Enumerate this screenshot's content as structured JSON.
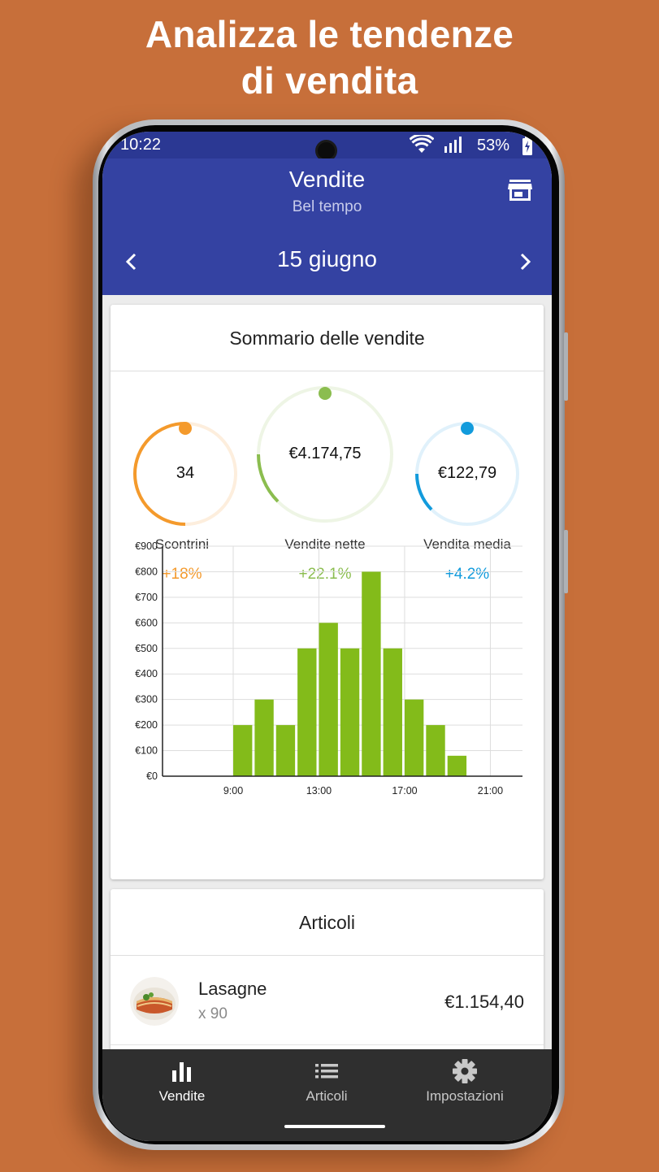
{
  "promo": {
    "headline_line1": "Analizza le tendenze",
    "headline_line2": "di vendita"
  },
  "status_bar": {
    "time": "10:22",
    "battery": "53%"
  },
  "app_bar": {
    "title": "Vendite",
    "subtitle": "Bel tempo",
    "date": "15 giugno"
  },
  "summary": {
    "title": "Sommario delle vendite",
    "metrics": [
      {
        "label": "Scontrini",
        "value": "34",
        "change": "+18%",
        "color": "#f49a2c",
        "track": "#fdeedd",
        "fill_fraction": 0.5
      },
      {
        "label": "Vendite nette",
        "value": "€4.174,75",
        "change": "+22.1%",
        "color": "#8bbd4f",
        "track": "#eef5e5",
        "fill_fraction": 0.25
      },
      {
        "label": "Vendita media",
        "value": "€122,79",
        "change": "+4.2%",
        "color": "#129bdc",
        "track": "#e0f1fb",
        "fill_fraction": 0.25
      }
    ]
  },
  "chart_data": {
    "type": "bar",
    "title": "",
    "xlabel": "",
    "ylabel": "",
    "ylim": [
      0,
      900
    ],
    "yticks": [
      "€0",
      "€100",
      "€200",
      "€300",
      "€400",
      "€500",
      "€600",
      "€700",
      "€800",
      "€900"
    ],
    "xticks": [
      "9:00",
      "13:00",
      "17:00",
      "21:00"
    ],
    "x_hours": [
      9,
      10,
      11,
      12,
      13,
      14,
      15,
      16,
      17,
      18,
      19,
      20,
      21
    ],
    "values": [
      200,
      300,
      200,
      500,
      600,
      500,
      800,
      500,
      300,
      200,
      80,
      0,
      0
    ],
    "bar_color": "#83bb1a",
    "grid": true
  },
  "articles": {
    "title": "Articoli",
    "items": [
      {
        "name": "Lasagne",
        "qty": "x 90",
        "price": "€1.154,40"
      }
    ]
  },
  "bottom_nav": [
    {
      "label": "Vendite",
      "icon": "bar-chart-icon",
      "active": true
    },
    {
      "label": "Articoli",
      "icon": "list-icon",
      "active": false
    },
    {
      "label": "Impostazioni",
      "icon": "gear-icon",
      "active": false
    }
  ],
  "colors": {
    "background": "#c76f3a",
    "app_bar": "#3442a2",
    "status_bar": "#2b3893",
    "nav_bar": "#2f2f2f"
  }
}
